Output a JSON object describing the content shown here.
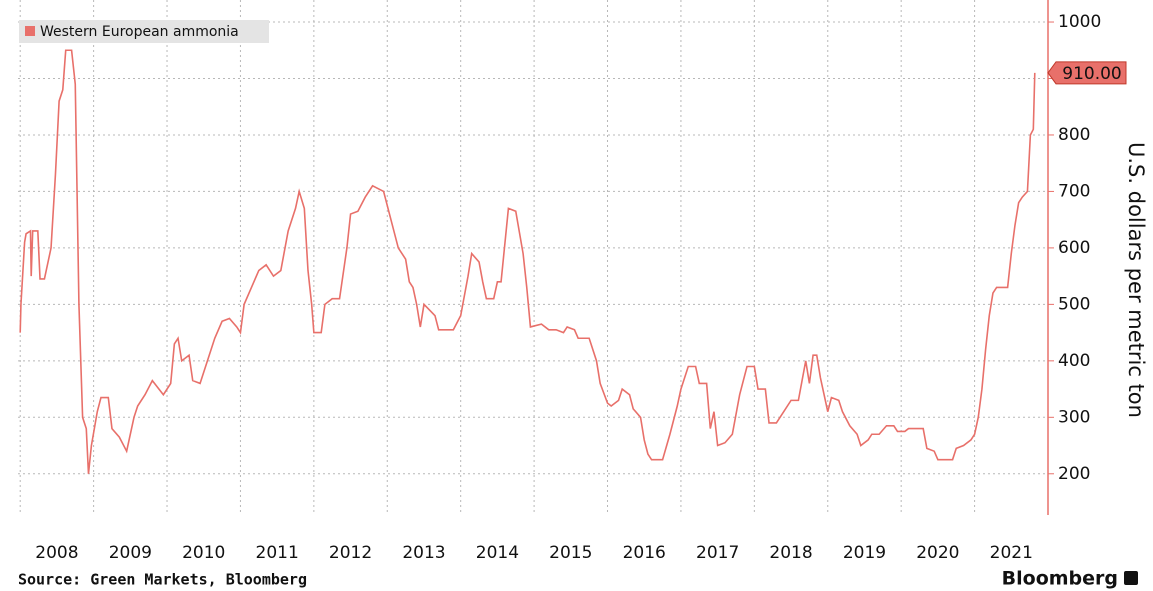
{
  "chart_data": {
    "type": "line",
    "legend_position": "upper left",
    "y_axis_side": "right",
    "ylabel": "U.S. dollars per metric ton",
    "source": "Source: Green Markets, Bloomberg",
    "brand": "Bloomberg",
    "grid": true,
    "xlim": [
      2007.97,
      2022.0
    ],
    "xticks": [
      {
        "value": 2008,
        "label": "2008"
      },
      {
        "value": 2009,
        "label": "2009"
      },
      {
        "value": 2010,
        "label": "2010"
      },
      {
        "value": 2011,
        "label": "2011"
      },
      {
        "value": 2012,
        "label": "2012"
      },
      {
        "value": 2013,
        "label": "2013"
      },
      {
        "value": 2014,
        "label": "2014"
      },
      {
        "value": 2015,
        "label": "2015"
      },
      {
        "value": 2016,
        "label": "2016"
      },
      {
        "value": 2017,
        "label": "2017"
      },
      {
        "value": 2018,
        "label": "2018"
      },
      {
        "value": 2019,
        "label": "2019"
      },
      {
        "value": 2020,
        "label": "2020"
      },
      {
        "value": 2021,
        "label": "2021"
      }
    ],
    "ylim": [
      127,
      1039
    ],
    "yticks": [
      200,
      300,
      400,
      500,
      600,
      700,
      800,
      900,
      1000
    ],
    "x": [
      2008.0,
      2008.01,
      2008.06,
      2008.08,
      2008.14,
      2008.15,
      2008.17,
      2008.24,
      2008.27,
      2008.33,
      2008.42,
      2008.48,
      2008.53,
      2008.58,
      2008.62,
      2008.7,
      2008.75,
      2008.8,
      2008.85,
      2008.9,
      2008.93,
      2008.97,
      2009.05,
      2009.1,
      2009.2,
      2009.25,
      2009.35,
      2009.45,
      2009.55,
      2009.6,
      2009.7,
      2009.8,
      2009.95,
      2010.05,
      2010.1,
      2010.15,
      2010.2,
      2010.3,
      2010.35,
      2010.45,
      2010.55,
      2010.65,
      2010.75,
      2010.85,
      2010.95,
      2011.0,
      2011.05,
      2011.15,
      2011.25,
      2011.35,
      2011.45,
      2011.55,
      2011.65,
      2011.75,
      2011.8,
      2011.87,
      2011.92,
      2011.97,
      2012.0,
      2012.1,
      2012.15,
      2012.25,
      2012.35,
      2012.45,
      2012.5,
      2012.6,
      2012.7,
      2012.8,
      2012.95,
      2013.05,
      2013.15,
      2013.25,
      2013.3,
      2013.35,
      2013.4,
      2013.45,
      2013.5,
      2013.65,
      2013.7,
      2013.9,
      2014.0,
      2014.1,
      2014.15,
      2014.25,
      2014.3,
      2014.35,
      2014.45,
      2014.5,
      2014.55,
      2014.65,
      2014.75,
      2014.85,
      2014.9,
      2014.95,
      2015.1,
      2015.2,
      2015.3,
      2015.4,
      2015.45,
      2015.55,
      2015.6,
      2015.75,
      2015.85,
      2015.9,
      2016.0,
      2016.05,
      2016.15,
      2016.2,
      2016.3,
      2016.35,
      2016.45,
      2016.5,
      2016.55,
      2016.6,
      2016.75,
      2016.85,
      2016.95,
      2017.0,
      2017.1,
      2017.2,
      2017.25,
      2017.35,
      2017.4,
      2017.45,
      2017.5,
      2017.6,
      2017.7,
      2017.8,
      2017.9,
      2018.0,
      2018.05,
      2018.15,
      2018.2,
      2018.3,
      2018.4,
      2018.5,
      2018.6,
      2018.7,
      2018.75,
      2018.8,
      2018.85,
      2018.9,
      2018.95,
      2019.0,
      2019.05,
      2019.15,
      2019.2,
      2019.3,
      2019.4,
      2019.45,
      2019.55,
      2019.6,
      2019.7,
      2019.8,
      2019.9,
      2019.95,
      2020.05,
      2020.1,
      2020.3,
      2020.35,
      2020.45,
      2020.5,
      2020.7,
      2020.75,
      2020.85,
      2020.95,
      2021.0,
      2021.05,
      2021.1,
      2021.15,
      2021.2,
      2021.25,
      2021.3,
      2021.45,
      2021.5,
      2021.55,
      2021.6,
      2021.65,
      2021.72,
      2021.76,
      2021.8,
      2021.82
    ],
    "series": [
      {
        "name": "Western European ammonia",
        "color": "#e8706a",
        "values": [
          450,
          500,
          610,
          625,
          630,
          550,
          630,
          630,
          545,
          545,
          600,
          730,
          860,
          880,
          950,
          950,
          890,
          500,
          300,
          280,
          200,
          250,
          310,
          335,
          335,
          280,
          265,
          240,
          300,
          320,
          340,
          365,
          340,
          360,
          430,
          440,
          400,
          410,
          365,
          360,
          400,
          440,
          470,
          475,
          460,
          450,
          500,
          530,
          560,
          570,
          550,
          560,
          630,
          670,
          700,
          670,
          560,
          500,
          450,
          450,
          500,
          510,
          510,
          600,
          660,
          665,
          690,
          710,
          700,
          650,
          600,
          580,
          540,
          530,
          500,
          460,
          500,
          480,
          455,
          455,
          480,
          550,
          590,
          575,
          540,
          510,
          510,
          540,
          540,
          670,
          665,
          590,
          530,
          460,
          465,
          455,
          455,
          450,
          460,
          455,
          440,
          440,
          400,
          360,
          325,
          320,
          330,
          350,
          340,
          315,
          300,
          260,
          235,
          225,
          225,
          270,
          320,
          350,
          390,
          390,
          360,
          360,
          280,
          310,
          250,
          255,
          270,
          340,
          390,
          390,
          350,
          350,
          290,
          290,
          310,
          330,
          330,
          400,
          360,
          410,
          410,
          370,
          340,
          310,
          335,
          330,
          310,
          285,
          270,
          250,
          260,
          270,
          270,
          285,
          285,
          275,
          275,
          280,
          280,
          245,
          240,
          225,
          225,
          245,
          250,
          260,
          270,
          300,
          350,
          420,
          480,
          520,
          530,
          530,
          590,
          640,
          680,
          690,
          700,
          800,
          810,
          910
        ],
        "value_labels": [
          null,
          null,
          null,
          null,
          null,
          null,
          null,
          null,
          null,
          null,
          null,
          null,
          null,
          null,
          null,
          null,
          null,
          null,
          null,
          null,
          null,
          null,
          null,
          null,
          null,
          null,
          null,
          null,
          null,
          null,
          null,
          null,
          null,
          null,
          null,
          null,
          null,
          null,
          null,
          null,
          null,
          null,
          null,
          null,
          null,
          null,
          null,
          null,
          null,
          null,
          null,
          null,
          null,
          null,
          null,
          null,
          null,
          null,
          null,
          null,
          null,
          null,
          null,
          null,
          null,
          null,
          null,
          null,
          null,
          null,
          null,
          null,
          null,
          null,
          null,
          null,
          null,
          null,
          null,
          null,
          null,
          null,
          null,
          null,
          null,
          null,
          null,
          null,
          null,
          null,
          null,
          null,
          null,
          null,
          null,
          null,
          null,
          null,
          null,
          null,
          null,
          null,
          null,
          null,
          null,
          null,
          null,
          null,
          null,
          null,
          null,
          null,
          null,
          null,
          null,
          null,
          null,
          null,
          null,
          null,
          null,
          null,
          null,
          null,
          null,
          null,
          null,
          null,
          null,
          null,
          null,
          null,
          null,
          null,
          null,
          null,
          null,
          null,
          null,
          null,
          null,
          null,
          null,
          null,
          null,
          null,
          null,
          null,
          null,
          null,
          null,
          null,
          null,
          null,
          null,
          null,
          null,
          null,
          null,
          null,
          null,
          null,
          null,
          null,
          null,
          null,
          null,
          null,
          null,
          null,
          null,
          null,
          null,
          null,
          null,
          null,
          null,
          null,
          null,
          null,
          null,
          "910.00"
        ]
      }
    ]
  }
}
